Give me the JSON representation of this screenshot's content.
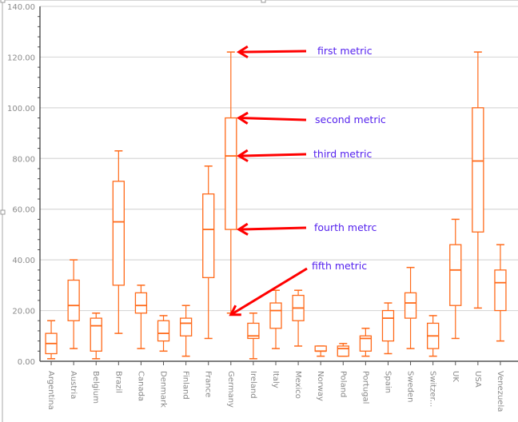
{
  "chart_data": {
    "type": "boxplot",
    "ylim": [
      0,
      140
    ],
    "yticks": [
      "0.00",
      "20.00",
      "40.00",
      "60.00",
      "80.00",
      "100.00",
      "120.00",
      "140.00"
    ],
    "grid": true,
    "colors": {
      "box": "#ff6a1a",
      "arrow": "#ff0000",
      "annotation_text": "#5522ee"
    },
    "categories": [
      "Argentina",
      "Austria",
      "Belgium",
      "Brazil",
      "Canada",
      "Denmark",
      "Finland",
      "France",
      "Germany",
      "Ireland",
      "Italy",
      "Mexico",
      "Norway",
      "Poland",
      "Portugal",
      "Spain",
      "Sweden",
      "Switzer...",
      "UK",
      "USA",
      "Venezuela"
    ],
    "boxes": [
      {
        "min": 1,
        "q1": 3,
        "median": 7,
        "q3": 11,
        "max": 16
      },
      {
        "min": 5,
        "q1": 16,
        "median": 22,
        "q3": 32,
        "max": 40
      },
      {
        "min": 1,
        "q1": 4,
        "median": 14,
        "q3": 17,
        "max": 19
      },
      {
        "min": 11,
        "q1": 30,
        "median": 55,
        "q3": 71,
        "max": 83
      },
      {
        "min": 5,
        "q1": 19,
        "median": 22,
        "q3": 27,
        "max": 30
      },
      {
        "min": 4,
        "q1": 8,
        "median": 11,
        "q3": 16,
        "max": 18
      },
      {
        "min": 2,
        "q1": 10,
        "median": 15,
        "q3": 17,
        "max": 22
      },
      {
        "min": 9,
        "q1": 33,
        "median": 52,
        "q3": 66,
        "max": 77
      },
      {
        "min": 19,
        "q1": 52,
        "median": 81,
        "q3": 96,
        "max": 122
      },
      {
        "min": 1,
        "q1": 9,
        "median": 10,
        "q3": 15,
        "max": 19
      },
      {
        "min": 5,
        "q1": 13,
        "median": 20,
        "q3": 23,
        "max": 28
      },
      {
        "min": 6,
        "q1": 16,
        "median": 21,
        "q3": 26,
        "max": 28
      },
      {
        "min": 2,
        "q1": 4,
        "median": 4,
        "q3": 6,
        "max": 6
      },
      {
        "min": 2,
        "q1": 2,
        "median": 5,
        "q3": 6,
        "max": 7
      },
      {
        "min": 2,
        "q1": 4,
        "median": 9,
        "q3": 10,
        "max": 13
      },
      {
        "min": 3,
        "q1": 8,
        "median": 17,
        "q3": 20,
        "max": 23
      },
      {
        "min": 5,
        "q1": 17,
        "median": 23,
        "q3": 27,
        "max": 37
      },
      {
        "min": 2,
        "q1": 5,
        "median": 10,
        "q3": 15,
        "max": 18
      },
      {
        "min": 9,
        "q1": 22,
        "median": 36,
        "q3": 46,
        "max": 56
      },
      {
        "min": 21,
        "q1": 51,
        "median": 79,
        "q3": 100,
        "max": 122
      },
      {
        "min": 8,
        "q1": 20,
        "median": 31,
        "q3": 36,
        "max": 46
      }
    ],
    "annotations": [
      {
        "text": "first metric",
        "target": "Germany max",
        "value": 122
      },
      {
        "text": "second metric",
        "target": "Germany q3",
        "value": 96
      },
      {
        "text": "third metric",
        "target": "Germany median",
        "value": 81
      },
      {
        "text": "fourth metrc",
        "target": "Germany q1",
        "value": 52
      },
      {
        "text": "fifth metric",
        "target": "Germany min",
        "value": 19
      }
    ]
  }
}
